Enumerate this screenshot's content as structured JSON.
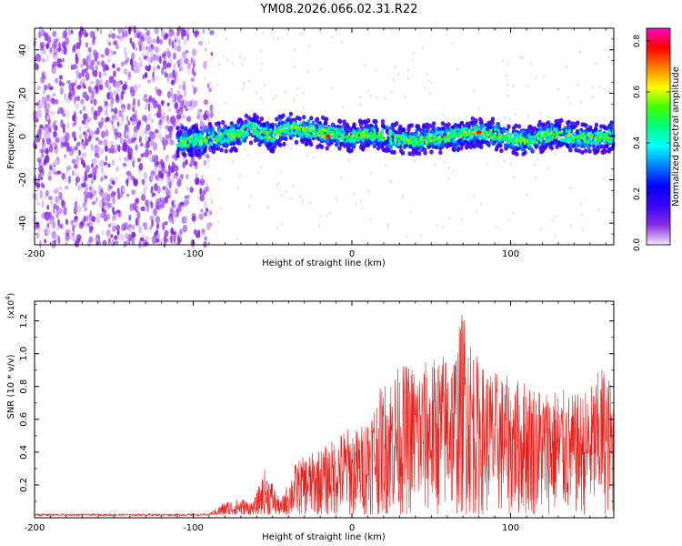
{
  "chart_data": [
    {
      "type": "heatmap",
      "title": "YM08.2026.066.02.31.R22",
      "xlabel": "Height of straight line (km)",
      "ylabel": "Frequency (Hz)",
      "xlim": [
        -200,
        165
      ],
      "ylim": [
        -50,
        50
      ],
      "xticks": [
        -200,
        -100,
        0,
        100
      ],
      "yticks": [
        -40,
        -20,
        0,
        20,
        40
      ],
      "xtick_labels": [
        "-200",
        "-100",
        "0",
        "100"
      ],
      "ytick_labels": [
        "-40",
        "-20",
        "0",
        "20",
        "40"
      ],
      "colorbar": {
        "label": "Normalized spectral amplitude",
        "range": [
          0.0,
          0.85
        ],
        "ticks": [
          0.0,
          0.2,
          0.4,
          0.6,
          0.8
        ],
        "tick_labels": [
          "0.0",
          "0.2",
          "0.4",
          "0.6",
          "0.8"
        ],
        "colormap": [
          "#f4e8ff",
          "#8a2be2",
          "#3a00ff",
          "#0000ff",
          "#0080ff",
          "#00ffff",
          "#00ff80",
          "#40ff00",
          "#ffff00",
          "#ff8000",
          "#ff0000",
          "#ff00c0"
        ]
      },
      "noise_region_km": [
        -200,
        -88
      ],
      "signal_band": [
        {
          "x": -110,
          "f": -3
        },
        {
          "x": -100,
          "f": -2
        },
        {
          "x": -90,
          "f": -1
        },
        {
          "x": -80,
          "f": 0
        },
        {
          "x": -70,
          "f": 1
        },
        {
          "x": -65,
          "f": 4
        },
        {
          "x": -58,
          "f": 2
        },
        {
          "x": -50,
          "f": 0
        },
        {
          "x": -45,
          "f": 3
        },
        {
          "x": -40,
          "f": 4
        },
        {
          "x": -30,
          "f": 3
        },
        {
          "x": -20,
          "f": 2
        },
        {
          "x": -10,
          "f": 1
        },
        {
          "x": 0,
          "f": 0
        },
        {
          "x": 10,
          "f": 1
        },
        {
          "x": 20,
          "f": 0
        },
        {
          "x": 30,
          "f": -1
        },
        {
          "x": 40,
          "f": -2
        },
        {
          "x": 50,
          "f": -1
        },
        {
          "x": 60,
          "f": 0
        },
        {
          "x": 70,
          "f": 1
        },
        {
          "x": 80,
          "f": 2
        },
        {
          "x": 90,
          "f": 1
        },
        {
          "x": 100,
          "f": -1
        },
        {
          "x": 110,
          "f": -2
        },
        {
          "x": 120,
          "f": 0
        },
        {
          "x": 130,
          "f": 1
        },
        {
          "x": 140,
          "f": 0
        },
        {
          "x": 150,
          "f": -1
        },
        {
          "x": 165,
          "f": 0
        }
      ],
      "peak_points": [
        {
          "x": -15,
          "f": 0
        },
        {
          "x": 80,
          "f": 2
        }
      ]
    },
    {
      "type": "line",
      "xlabel": "Height of straight line (km)",
      "ylabel": "SNR (10 * v/v)",
      "scale_note": "(x10",
      "scale_exp": "4",
      "xlim": [
        -200,
        165
      ],
      "ylim": [
        0,
        1.32
      ],
      "xticks": [
        -200,
        -100,
        0,
        100
      ],
      "yticks": [
        0.2,
        0.4,
        0.6,
        0.8,
        1.0,
        1.2
      ],
      "xtick_labels": [
        "-200",
        "-100",
        "0",
        "100"
      ],
      "ytick_labels": [
        "0.2",
        "0.4",
        "0.6",
        "0.8",
        "1.0",
        "1.2"
      ],
      "series_color": "#e8201c",
      "envelope": [
        {
          "x": -200,
          "y": 0.02
        },
        {
          "x": -90,
          "y": 0.03
        },
        {
          "x": -80,
          "y": 0.1
        },
        {
          "x": -70,
          "y": 0.12
        },
        {
          "x": -62,
          "y": 0.1
        },
        {
          "x": -55,
          "y": 0.3
        },
        {
          "x": -50,
          "y": 0.22
        },
        {
          "x": -45,
          "y": 0.1
        },
        {
          "x": -35,
          "y": 0.35
        },
        {
          "x": -25,
          "y": 0.4
        },
        {
          "x": -15,
          "y": 0.45
        },
        {
          "x": -5,
          "y": 0.55
        },
        {
          "x": 5,
          "y": 0.55
        },
        {
          "x": 15,
          "y": 0.75
        },
        {
          "x": 25,
          "y": 0.9
        },
        {
          "x": 35,
          "y": 0.95
        },
        {
          "x": 45,
          "y": 0.95
        },
        {
          "x": 55,
          "y": 1.0
        },
        {
          "x": 65,
          "y": 1.05
        },
        {
          "x": 70,
          "y": 1.3
        },
        {
          "x": 80,
          "y": 0.95
        },
        {
          "x": 90,
          "y": 0.9
        },
        {
          "x": 100,
          "y": 0.85
        },
        {
          "x": 110,
          "y": 0.85
        },
        {
          "x": 120,
          "y": 0.8
        },
        {
          "x": 130,
          "y": 0.8
        },
        {
          "x": 140,
          "y": 0.75
        },
        {
          "x": 150,
          "y": 0.8
        },
        {
          "x": 158,
          "y": 0.95
        },
        {
          "x": 165,
          "y": 0.8
        }
      ]
    }
  ]
}
